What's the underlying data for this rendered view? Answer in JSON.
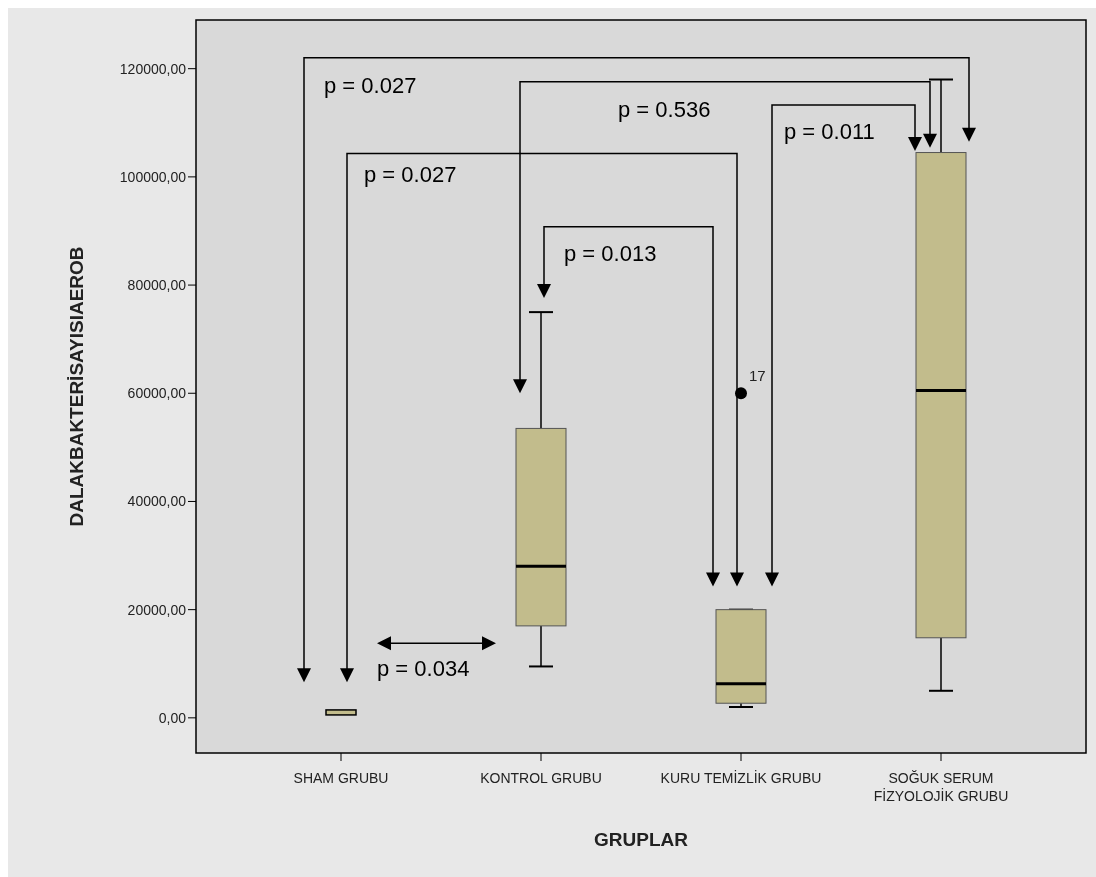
{
  "chart_data": {
    "type": "box",
    "xlabel": "GRUPLAR",
    "ylabel": "DALAKBAKTERİSAYISIAEROB",
    "categories": [
      "SHAM GRUBU",
      "KONTROL GRUBU",
      "KURU TEMİZLİK GRUBU",
      "SOĞUK SERUM\nFİZYOLOJİK GRUBU"
    ],
    "color": "#c2bc8c",
    "boxes": [
      {
        "low": 1000,
        "q1": 1000,
        "median": 1000,
        "q3": 1000,
        "high": 1000
      },
      {
        "low": 9500,
        "q1": 17000,
        "median": 28000,
        "q3": 53500,
        "high": 75000
      },
      {
        "low": 2000,
        "q1": 2700,
        "median": 6300,
        "q3": 20000,
        "high": 20000,
        "outliers": [
          60000
        ]
      },
      {
        "low": 5000,
        "q1": 14800,
        "median": 60500,
        "q3": 104500,
        "high": 118000
      }
    ],
    "ylim": [
      -6500,
      129000
    ],
    "yticks": [
      {
        "value": 0,
        "label": "0,00"
      },
      {
        "value": 20000,
        "label": "20000,00"
      },
      {
        "value": 40000,
        "label": "40000,00"
      },
      {
        "value": 60000,
        "label": "60000,00"
      },
      {
        "value": 80000,
        "label": "80000,00"
      },
      {
        "value": 100000,
        "label": "100000,00"
      },
      {
        "value": 120000,
        "label": "120000,00"
      }
    ],
    "grid": false,
    "annotations": [
      "p = 0.027",
      "p = 0.536",
      "p = 0.027",
      "p = 0.013",
      "p = 0.011",
      "p = 0.034",
      "17"
    ]
  }
}
